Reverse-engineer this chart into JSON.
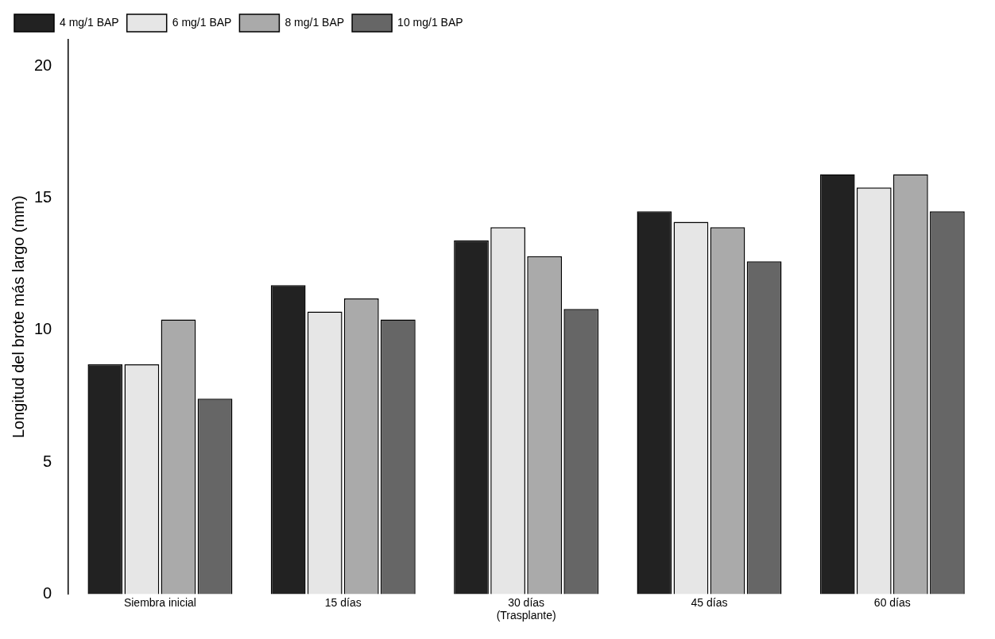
{
  "chart_data": {
    "type": "bar",
    "ylabel": "Longitud del brote más largo (mm)",
    "categories": [
      "Siembra inicial",
      "15 días",
      "30 días\n(Trasplante)",
      "45 días",
      "60 días"
    ],
    "series": [
      {
        "name": "4 mg/1 BAP",
        "color": "#222222",
        "values": [
          8.7,
          11.7,
          13.4,
          14.5,
          15.9
        ]
      },
      {
        "name": "6 mg/1 BAP",
        "color": "#e6e6e6",
        "values": [
          8.7,
          10.7,
          13.9,
          14.1,
          15.4
        ]
      },
      {
        "name": "8 mg/1 BAP",
        "color": "#aaaaaa",
        "values": [
          10.4,
          11.2,
          12.8,
          13.9,
          15.9
        ]
      },
      {
        "name": "10 mg/1 BAP",
        "color": "#666666",
        "values": [
          7.4,
          10.4,
          10.8,
          12.6,
          14.5
        ]
      }
    ],
    "ylim": [
      0,
      21
    ],
    "yticks": [
      0,
      5,
      10,
      15,
      20
    ],
    "grid": false,
    "legend": "top left"
  }
}
